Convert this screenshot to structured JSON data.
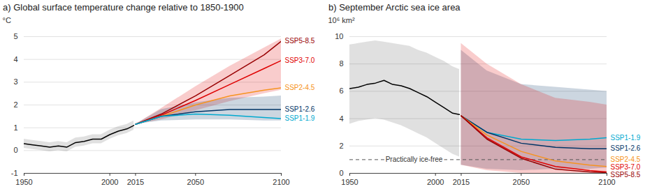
{
  "chart_data": [
    {
      "type": "line",
      "title": "a) Global surface temperature change relative to 1850-1900",
      "y_label": "°C",
      "xlim": [
        1950,
        2100
      ],
      "xticks": [
        1950,
        2000,
        2015,
        2050,
        2100
      ],
      "ylim": [
        -1,
        5
      ],
      "yticks": [
        -1,
        0,
        1,
        2,
        3,
        4,
        5
      ],
      "grid": true,
      "series": [
        {
          "color": "#000000",
          "x": [
            1950,
            1955,
            1960,
            1965,
            1970,
            1975,
            1980,
            1985,
            1990,
            1995,
            2000,
            2005,
            2010,
            2014
          ],
          "values": [
            0.3,
            0.25,
            0.2,
            0.15,
            0.2,
            0.15,
            0.35,
            0.4,
            0.5,
            0.5,
            0.7,
            0.85,
            0.95,
            1.1
          ],
          "lower": [
            0.1,
            0.05,
            0.0,
            -0.05,
            0.0,
            -0.05,
            0.15,
            0.2,
            0.3,
            0.3,
            0.5,
            0.65,
            0.75,
            0.9
          ],
          "upper": [
            0.5,
            0.45,
            0.4,
            0.35,
            0.4,
            0.35,
            0.55,
            0.6,
            0.7,
            0.7,
            0.9,
            1.05,
            1.15,
            1.3
          ]
        },
        {
          "name": "SSP5-8.5",
          "color": "#980002",
          "x": [
            2015,
            2030,
            2050,
            2070,
            2090,
            2100
          ],
          "values": [
            1.15,
            1.6,
            2.4,
            3.3,
            4.2,
            4.8
          ]
        },
        {
          "name": "SSP3-7.0",
          "color": "#df0000",
          "x": [
            2015,
            2030,
            2050,
            2070,
            2090,
            2100
          ],
          "values": [
            1.15,
            1.55,
            2.2,
            2.9,
            3.6,
            3.95
          ],
          "lower": [
            1.15,
            1.35,
            1.75,
            2.15,
            2.5,
            2.65
          ],
          "upper": [
            1.15,
            1.85,
            2.8,
            3.7,
            4.5,
            4.9
          ]
        },
        {
          "name": "SSP2-4.5",
          "color": "#f69320",
          "x": [
            2015,
            2030,
            2050,
            2070,
            2090,
            2100
          ],
          "values": [
            1.15,
            1.5,
            2.0,
            2.4,
            2.65,
            2.75
          ]
        },
        {
          "name": "SSP1-2.6",
          "color": "#003466",
          "x": [
            2015,
            2030,
            2050,
            2070,
            2090,
            2100
          ],
          "values": [
            1.15,
            1.5,
            1.7,
            1.8,
            1.8,
            1.8
          ],
          "lower": [
            1.15,
            1.3,
            1.35,
            1.35,
            1.3,
            1.3
          ],
          "upper": [
            1.15,
            1.8,
            2.1,
            2.3,
            2.35,
            2.4
          ]
        },
        {
          "name": "SSP1-1.9",
          "color": "#00a9cf",
          "x": [
            2015,
            2030,
            2050,
            2070,
            2090,
            2100
          ],
          "values": [
            1.15,
            1.5,
            1.6,
            1.55,
            1.45,
            1.4
          ]
        }
      ]
    },
    {
      "type": "line",
      "title": "b) September Arctic sea ice area",
      "y_label": "10⁶ km²",
      "xlim": [
        1950,
        2100
      ],
      "xticks": [
        1950,
        2000,
        2015,
        2050,
        2100
      ],
      "ylim": [
        0,
        10
      ],
      "yticks": [
        0,
        2,
        4,
        6,
        8,
        10
      ],
      "grid": true,
      "reference_lines": [
        {
          "y": 1,
          "label": "Practically ice-free"
        }
      ],
      "series": [
        {
          "color": "#000000",
          "x": [
            1950,
            1955,
            1960,
            1965,
            1970,
            1975,
            1980,
            1985,
            1990,
            1995,
            2000,
            2005,
            2010,
            2014
          ],
          "values": [
            6.2,
            6.3,
            6.5,
            6.6,
            6.8,
            6.5,
            6.4,
            6.2,
            5.9,
            5.6,
            5.2,
            4.8,
            4.4,
            4.3
          ],
          "lower": [
            3.6,
            3.8,
            3.9,
            4.0,
            3.9,
            3.7,
            3.5,
            3.2,
            2.9,
            2.6,
            2.2,
            1.8,
            1.4,
            1.2
          ],
          "upper": [
            9.4,
            9.5,
            9.6,
            9.7,
            9.6,
            9.5,
            9.4,
            9.3,
            9.0,
            8.8,
            8.5,
            8.2,
            7.8,
            7.6
          ]
        },
        {
          "name": "SSP1-1.9",
          "color": "#00a9cf",
          "x": [
            2015,
            2030,
            2050,
            2070,
            2090,
            2100
          ],
          "values": [
            4.2,
            3.0,
            2.5,
            2.4,
            2.5,
            2.6
          ]
        },
        {
          "name": "SSP1-2.6",
          "color": "#003466",
          "x": [
            2015,
            2030,
            2050,
            2070,
            2090,
            2100
          ],
          "values": [
            4.2,
            3.0,
            2.2,
            1.9,
            1.8,
            1.8
          ],
          "lower": [
            0.6,
            0.3,
            0.2,
            0.3,
            0.3,
            0.4
          ],
          "upper": [
            9.0,
            7.5,
            6.5,
            6.3,
            6.1,
            6.0
          ]
        },
        {
          "name": "SSP2-4.5",
          "color": "#f69320",
          "x": [
            2015,
            2030,
            2050,
            2070,
            2090,
            2100
          ],
          "values": [
            4.2,
            2.8,
            1.6,
            0.9,
            0.6,
            0.5
          ]
        },
        {
          "name": "SSP3-7.0",
          "color": "#df0000",
          "x": [
            2015,
            2030,
            2050,
            2070,
            2090,
            2100
          ],
          "values": [
            4.2,
            2.6,
            1.2,
            0.5,
            0.2,
            0.1
          ],
          "lower": [
            0.6,
            0.2,
            0,
            0,
            0,
            0
          ],
          "upper": [
            9.5,
            8.0,
            6.5,
            5.5,
            5.2,
            5.0
          ]
        },
        {
          "name": "SSP5-8.5",
          "color": "#980002",
          "x": [
            2015,
            2030,
            2050,
            2070,
            2090,
            2100
          ],
          "values": [
            4.2,
            2.5,
            1.1,
            0.3,
            0.1,
            0.05
          ]
        }
      ]
    }
  ]
}
